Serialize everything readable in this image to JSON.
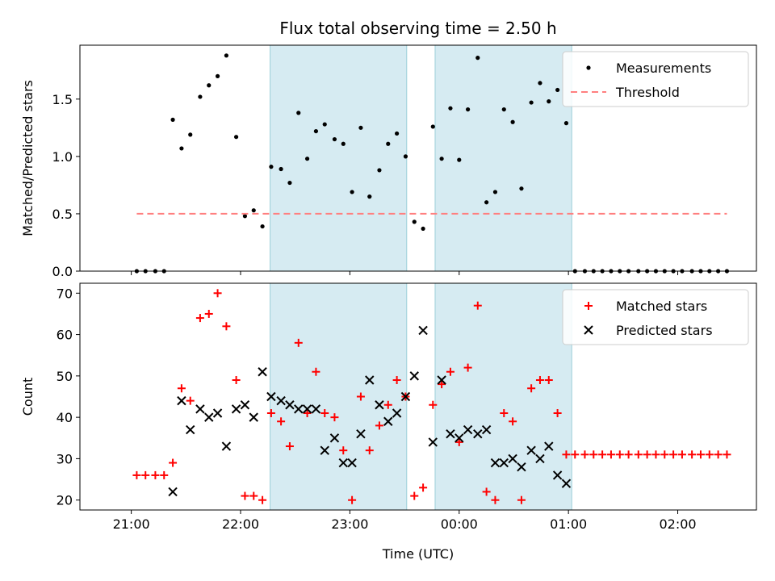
{
  "chart_data": [
    {
      "type": "scatter",
      "title": "Flux total observing time = 2.50 h",
      "ylabel": "Matched/Predicted stars",
      "xlabel": "",
      "xlim_hours": [
        20.53,
        26.72
      ],
      "ylim": [
        0,
        1.97
      ],
      "yticks": [
        "0.0",
        "0.5",
        "1.0",
        "1.5"
      ],
      "ytick_values": [
        0,
        0.5,
        1.0,
        1.5
      ],
      "shaded_intervals_hours": [
        [
          22.27,
          23.52
        ],
        [
          23.78,
          25.03
        ]
      ],
      "legend": {
        "position": "top-right",
        "entries": [
          "Measurements",
          "Threshold"
        ]
      },
      "series": [
        {
          "name": "Measurements",
          "marker": "dot",
          "color": "#000000",
          "x": [
            21.05,
            21.13,
            21.22,
            21.3,
            21.38,
            21.46,
            21.54,
            21.63,
            21.71,
            21.79,
            21.87,
            21.96,
            22.04,
            22.12,
            22.2,
            22.28,
            22.37,
            22.45,
            22.53,
            22.61,
            22.69,
            22.77,
            22.86,
            22.94,
            23.02,
            23.1,
            23.18,
            23.27,
            23.35,
            23.43,
            23.51,
            23.59,
            23.67,
            23.76,
            23.84,
            23.92,
            24.0,
            24.08,
            24.17,
            24.25,
            24.33,
            24.41,
            24.49,
            24.57,
            24.66,
            24.74,
            24.82,
            24.9,
            24.98,
            25.06,
            25.15,
            25.23,
            25.31,
            25.39,
            25.47,
            25.55,
            25.64,
            25.72,
            25.8,
            25.88,
            25.96,
            26.04,
            26.13,
            26.21,
            26.29,
            26.37,
            26.45
          ],
          "y": [
            0,
            0,
            0,
            0,
            1.32,
            1.07,
            1.19,
            1.52,
            1.62,
            1.7,
            1.88,
            1.17,
            0.48,
            0.53,
            0.39,
            0.91,
            0.89,
            0.77,
            1.38,
            0.98,
            1.22,
            1.28,
            1.15,
            1.11,
            0.69,
            1.25,
            0.65,
            0.88,
            1.11,
            1.2,
            1.0,
            0.43,
            0.37,
            1.26,
            0.98,
            1.42,
            0.97,
            1.41,
            1.86,
            0.6,
            0.69,
            1.41,
            1.3,
            0.72,
            1.47,
            1.64,
            1.48,
            1.58,
            1.29,
            0,
            0,
            0,
            0,
            0,
            0,
            0,
            0,
            0,
            0,
            0,
            0,
            0,
            0,
            0,
            0,
            0,
            0
          ]
        },
        {
          "name": "Threshold",
          "marker": "dashed-line",
          "color": "#ff7f7f",
          "x": [
            21.05,
            26.45
          ],
          "y": [
            0.5,
            0.5
          ]
        }
      ]
    },
    {
      "type": "scatter",
      "title": "",
      "ylabel": "Count",
      "xlabel": "Time (UTC)",
      "xlim_hours": [
        20.53,
        26.72
      ],
      "ylim": [
        17.6,
        72.4
      ],
      "yticks": [
        "20",
        "30",
        "40",
        "50",
        "60",
        "70"
      ],
      "ytick_values": [
        20,
        30,
        40,
        50,
        60,
        70
      ],
      "xticks": [
        "21:00",
        "22:00",
        "23:00",
        "00:00",
        "01:00",
        "02:00"
      ],
      "xtick_hours": [
        21,
        22,
        23,
        24,
        25,
        26
      ],
      "shaded_intervals_hours": [
        [
          22.27,
          23.52
        ],
        [
          23.78,
          25.03
        ]
      ],
      "legend": {
        "position": "top-right",
        "entries": [
          "Matched stars",
          "Predicted stars"
        ]
      },
      "series": [
        {
          "name": "Matched stars",
          "marker": "plus",
          "color": "#ff0000",
          "x": [
            21.05,
            21.13,
            21.22,
            21.3,
            21.38,
            21.46,
            21.54,
            21.63,
            21.71,
            21.79,
            21.87,
            21.96,
            22.04,
            22.12,
            22.2,
            22.28,
            22.37,
            22.45,
            22.53,
            22.61,
            22.69,
            22.77,
            22.86,
            22.94,
            23.02,
            23.1,
            23.18,
            23.27,
            23.35,
            23.43,
            23.51,
            23.59,
            23.67,
            23.76,
            23.84,
            23.92,
            24.0,
            24.08,
            24.17,
            24.25,
            24.33,
            24.41,
            24.49,
            24.57,
            24.66,
            24.74,
            24.82,
            24.9,
            24.98,
            25.06,
            25.15,
            25.23,
            25.31,
            25.39,
            25.47,
            25.55,
            25.64,
            25.72,
            25.8,
            25.88,
            25.96,
            26.04,
            26.13,
            26.21,
            26.29,
            26.37,
            26.45
          ],
          "y": [
            26,
            26,
            26,
            26,
            29,
            47,
            44,
            64,
            65,
            70,
            62,
            49,
            21,
            21,
            20,
            41,
            39,
            33,
            58,
            41,
            51,
            41,
            40,
            32,
            20,
            45,
            32,
            38,
            43,
            49,
            45,
            21,
            23,
            43,
            48,
            51,
            34,
            52,
            67,
            22,
            20,
            41,
            39,
            20,
            47,
            49,
            49,
            41,
            31,
            31,
            31,
            31,
            31,
            31,
            31,
            31,
            31,
            31,
            31,
            31,
            31,
            31,
            31,
            31,
            31,
            31,
            31
          ]
        },
        {
          "name": "Predicted stars",
          "marker": "x",
          "color": "#000000",
          "x": [
            21.38,
            21.46,
            21.54,
            21.63,
            21.71,
            21.79,
            21.87,
            21.96,
            22.04,
            22.12,
            22.2,
            22.28,
            22.37,
            22.45,
            22.53,
            22.61,
            22.69,
            22.77,
            22.86,
            22.94,
            23.02,
            23.1,
            23.18,
            23.27,
            23.35,
            23.43,
            23.51,
            23.59,
            23.67,
            23.76,
            23.84,
            23.92,
            24.0,
            24.08,
            24.17,
            24.25,
            24.33,
            24.41,
            24.49,
            24.57,
            24.66,
            24.74,
            24.82,
            24.9,
            24.98
          ],
          "y": [
            22,
            44,
            37,
            42,
            40,
            41,
            33,
            42,
            43,
            40,
            51,
            45,
            44,
            43,
            42,
            42,
            42,
            32,
            35,
            29,
            29,
            36,
            49,
            43,
            39,
            41,
            45,
            50,
            61,
            34,
            49,
            36,
            35,
            37,
            36,
            37,
            29,
            29,
            30,
            28,
            32,
            30,
            33,
            26,
            24
          ]
        }
      ]
    }
  ]
}
